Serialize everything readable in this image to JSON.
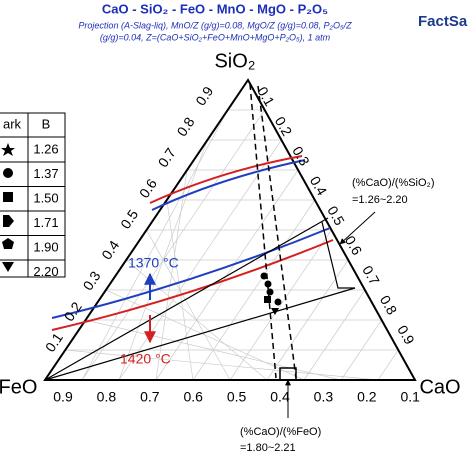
{
  "header": {
    "title": "CaO - SiO₂ - FeO - MnO - MgO - P₂O₅",
    "subtitle": [
      "Projection (A-Slag-liq), MnO/Z (g/g)=0.08, MgO/Z (g/g)=0.08, P₂O₅/Z",
      "(g/g)=0.04, Z=(CaO+SiO₂+FeO+MnO+MgO+P₂O₅), 1 atm"
    ],
    "logo": "FactSa"
  },
  "vertices": {
    "top": "SiO₂",
    "left": "FeO",
    "right": "CaO"
  },
  "axis_labels": {
    "bottom": [
      "0.9",
      "0.8",
      "0.7",
      "0.6",
      "0.5",
      "0.4",
      "0.3",
      "0.2",
      "0.1"
    ],
    "left": [
      "0.1",
      "0.2",
      "0.3",
      "0.4",
      "0.5",
      "0.6",
      "0.7",
      "0.8",
      "0.9"
    ],
    "right": [
      "0.1",
      "0.2",
      "0.3",
      "0.4",
      "0.5",
      "0.6",
      "0.7",
      "0.8",
      "0.9"
    ]
  },
  "legend": {
    "headers": [
      "ark",
      "B"
    ],
    "rows": [
      "1.26",
      "1.37",
      "1.50",
      "1.71",
      "1.90",
      "2.20"
    ]
  },
  "annotations": {
    "isotherm_low": "1370 °C",
    "isotherm_high": "1420 °C",
    "ratio_sio2": [
      "(%CaO)/(%SiO₂)",
      "=1.26~2.20"
    ],
    "ratio_feo": [
      "(%CaO)/(%FeO)",
      "=1.80~2.21"
    ]
  }
}
